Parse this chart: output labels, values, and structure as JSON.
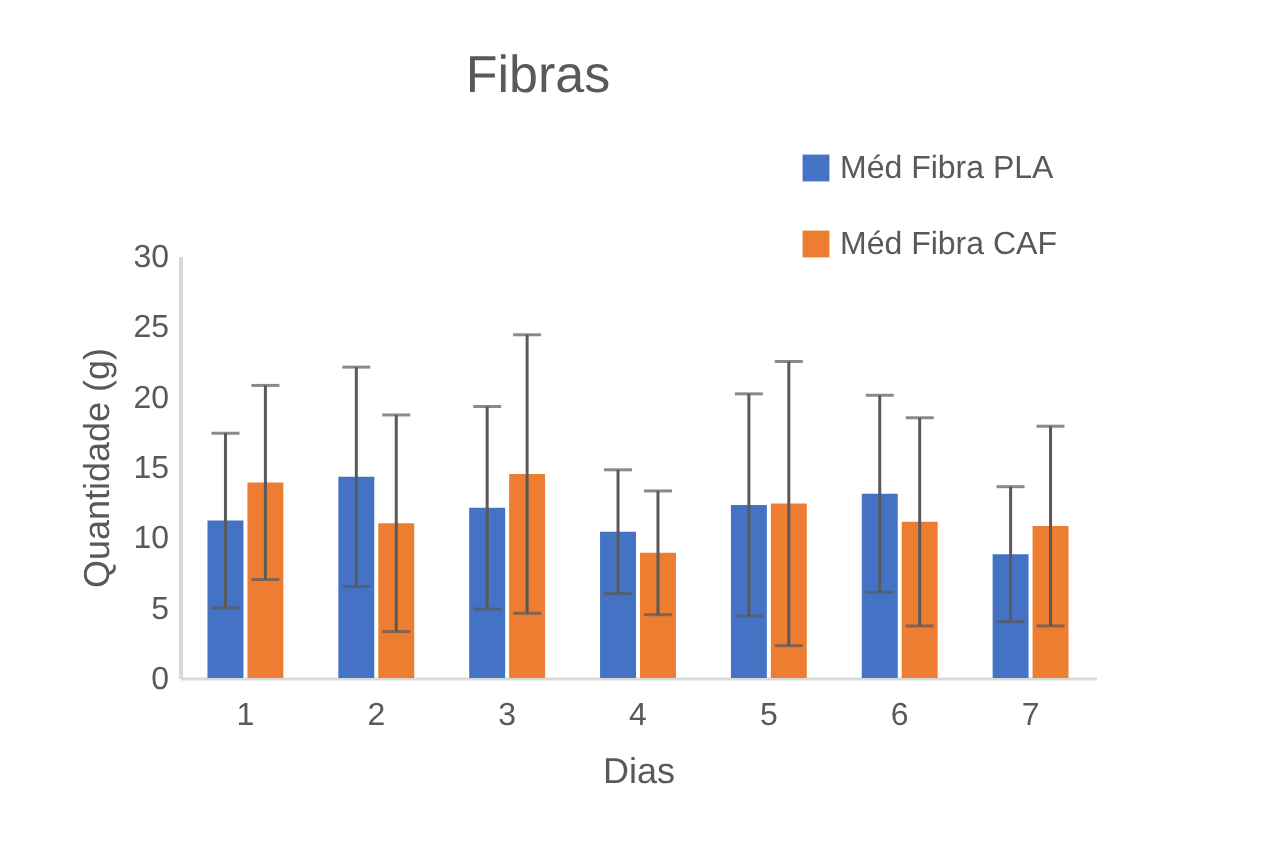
{
  "chart_data": {
    "type": "bar",
    "title": "Fibras",
    "xlabel": "Dias",
    "ylabel": "Quantidade (g)",
    "categories": [
      "1",
      "2",
      "3",
      "4",
      "5",
      "6",
      "7"
    ],
    "series": [
      {
        "name": "Méd Fibra PLA",
        "color": "#4472c4",
        "values": [
          11.2,
          14.3,
          12.1,
          10.4,
          12.3,
          13.1,
          8.8
        ],
        "errors": [
          6.2,
          7.8,
          7.2,
          4.4,
          7.9,
          7.0,
          4.8
        ]
      },
      {
        "name": "Méd Fibra CAF",
        "color": "#ed7d31",
        "values": [
          13.9,
          11.0,
          14.5,
          8.9,
          12.4,
          11.1,
          10.8
        ],
        "errors": [
          6.9,
          7.7,
          9.9,
          4.4,
          10.1,
          7.4,
          7.1
        ]
      }
    ],
    "ylim": [
      0,
      30
    ],
    "yticks": [
      0,
      5,
      10,
      15,
      20,
      25,
      30
    ],
    "grid": false,
    "legend": "top right"
  }
}
